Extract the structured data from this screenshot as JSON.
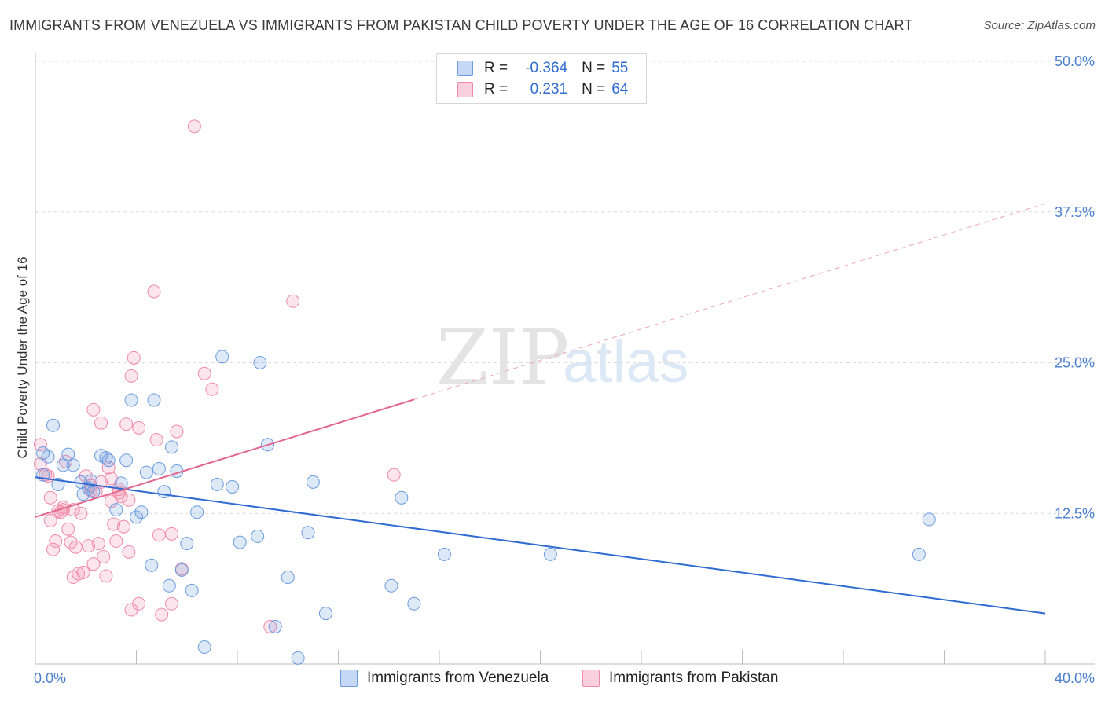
{
  "header": {
    "title": "IMMIGRANTS FROM VENEZUELA VS IMMIGRANTS FROM PAKISTAN CHILD POVERTY UNDER THE AGE OF 16 CORRELATION CHART",
    "source": "Source: ZipAtlas.com"
  },
  "watermark": {
    "zip": "ZIP",
    "atlas": "atlas"
  },
  "legend": {
    "venezuela": {
      "r_label": "R =",
      "r_value": "-0.364",
      "n_label": "N =",
      "n_value": "55",
      "color": "#6b9be0"
    },
    "pakistan": {
      "r_label": "R =",
      "r_value": "0.231",
      "n_label": "N =",
      "n_value": "64",
      "color": "#f08aaa"
    }
  },
  "series_labels": {
    "venezuela": "Immigrants from Venezuela",
    "pakistan": "Immigrants from Pakistan"
  },
  "chart_data": {
    "type": "scatter",
    "title": "IMMIGRANTS FROM VENEZUELA VS IMMIGRANTS FROM PAKISTAN CHILD POVERTY UNDER THE AGE OF 16 CORRELATION CHART",
    "xlabel": "",
    "ylabel": "Child Poverty Under the Age of 16",
    "xlim": [
      0,
      40
    ],
    "ylim": [
      0,
      50
    ],
    "x_tick_labels": [
      "0.0%",
      "40.0%"
    ],
    "y_ticks": [
      12.5,
      25.0,
      37.5,
      50.0
    ],
    "y_tick_labels": [
      "12.5%",
      "25.0%",
      "37.5%",
      "50.0%"
    ],
    "grid": "horizontal dashed",
    "series": [
      {
        "name": "Immigrants from Venezuela",
        "color": "#6b9be0",
        "trend": {
          "x0": 0,
          "y0": 15.5,
          "x1": 40,
          "y1": 4.2,
          "dashed_from": null
        },
        "points": [
          [
            0.3,
            17.5
          ],
          [
            0.3,
            15.7
          ],
          [
            0.5,
            17.2
          ],
          [
            0.7,
            19.8
          ],
          [
            0.9,
            14.9
          ],
          [
            1.3,
            17.4
          ],
          [
            1.1,
            16.5
          ],
          [
            1.5,
            16.5
          ],
          [
            1.8,
            15.1
          ],
          [
            1.9,
            14.1
          ],
          [
            2.1,
            14.6
          ],
          [
            2.3,
            14.3
          ],
          [
            2.2,
            15.2
          ],
          [
            2.6,
            17.3
          ],
          [
            2.8,
            17.1
          ],
          [
            2.9,
            16.9
          ],
          [
            3.2,
            12.8
          ],
          [
            3.4,
            15.0
          ],
          [
            3.6,
            16.9
          ],
          [
            3.8,
            21.9
          ],
          [
            4.0,
            12.2
          ],
          [
            4.2,
            12.6
          ],
          [
            4.4,
            15.9
          ],
          [
            4.6,
            8.2
          ],
          [
            4.7,
            21.9
          ],
          [
            4.9,
            16.2
          ],
          [
            5.1,
            14.3
          ],
          [
            5.3,
            6.5
          ],
          [
            5.4,
            18.0
          ],
          [
            5.6,
            16.0
          ],
          [
            5.8,
            7.8
          ],
          [
            6.0,
            10.0
          ],
          [
            6.2,
            6.1
          ],
          [
            6.4,
            12.6
          ],
          [
            6.7,
            1.4
          ],
          [
            7.2,
            14.9
          ],
          [
            7.4,
            25.5
          ],
          [
            7.8,
            14.7
          ],
          [
            8.1,
            10.1
          ],
          [
            8.8,
            10.6
          ],
          [
            8.9,
            25.0
          ],
          [
            9.2,
            18.2
          ],
          [
            10.0,
            7.2
          ],
          [
            9.5,
            3.1
          ],
          [
            10.4,
            0.5
          ],
          [
            10.8,
            10.9
          ],
          [
            11.0,
            15.1
          ],
          [
            11.5,
            4.2
          ],
          [
            14.5,
            13.8
          ],
          [
            14.1,
            6.5
          ],
          [
            15.0,
            5.0
          ],
          [
            16.2,
            9.1
          ],
          [
            20.4,
            9.1
          ],
          [
            35.4,
            12.0
          ],
          [
            35.0,
            9.1
          ]
        ]
      },
      {
        "name": "Immigrants from Pakistan",
        "color": "#f08aaa",
        "trend": {
          "x0": 0,
          "y0": 12.2,
          "x1": 40,
          "y1": 38.2,
          "dashed_from": 15.0
        },
        "points": [
          [
            0.2,
            18.2
          ],
          [
            0.2,
            16.6
          ],
          [
            0.4,
            15.7
          ],
          [
            0.5,
            15.6
          ],
          [
            0.6,
            11.9
          ],
          [
            0.6,
            13.8
          ],
          [
            0.7,
            9.5
          ],
          [
            0.8,
            10.2
          ],
          [
            0.9,
            12.7
          ],
          [
            1.0,
            12.6
          ],
          [
            1.1,
            12.8
          ],
          [
            1.1,
            13.0
          ],
          [
            1.3,
            11.2
          ],
          [
            1.4,
            10.1
          ],
          [
            1.5,
            7.2
          ],
          [
            1.5,
            12.8
          ],
          [
            1.6,
            9.7
          ],
          [
            1.7,
            7.5
          ],
          [
            1.8,
            12.5
          ],
          [
            1.9,
            7.6
          ],
          [
            2.0,
            15.6
          ],
          [
            2.1,
            9.8
          ],
          [
            2.2,
            14.4
          ],
          [
            2.2,
            14.8
          ],
          [
            2.3,
            21.1
          ],
          [
            2.3,
            8.3
          ],
          [
            2.4,
            14.3
          ],
          [
            2.5,
            10.0
          ],
          [
            2.6,
            20.0
          ],
          [
            2.7,
            8.9
          ],
          [
            2.8,
            7.3
          ],
          [
            2.9,
            16.3
          ],
          [
            3.0,
            13.5
          ],
          [
            3.0,
            15.4
          ],
          [
            3.1,
            11.6
          ],
          [
            3.2,
            10.2
          ],
          [
            3.3,
            14.2
          ],
          [
            3.4,
            13.9
          ],
          [
            3.5,
            11.4
          ],
          [
            3.6,
            19.9
          ],
          [
            3.7,
            13.6
          ],
          [
            3.7,
            9.3
          ],
          [
            3.8,
            23.9
          ],
          [
            3.8,
            4.5
          ],
          [
            3.9,
            25.4
          ],
          [
            4.1,
            5.0
          ],
          [
            4.1,
            19.6
          ],
          [
            4.7,
            30.9
          ],
          [
            4.8,
            18.6
          ],
          [
            4.9,
            10.7
          ],
          [
            5.0,
            4.1
          ],
          [
            5.4,
            5.0
          ],
          [
            5.4,
            10.8
          ],
          [
            5.6,
            19.3
          ],
          [
            5.8,
            7.9
          ],
          [
            6.3,
            44.6
          ],
          [
            6.7,
            24.1
          ],
          [
            7.0,
            22.8
          ],
          [
            9.3,
            3.1
          ],
          [
            10.2,
            30.1
          ],
          [
            14.2,
            15.7
          ],
          [
            3.3,
            14.5
          ],
          [
            1.2,
            16.8
          ],
          [
            2.6,
            15.1
          ]
        ]
      }
    ]
  }
}
